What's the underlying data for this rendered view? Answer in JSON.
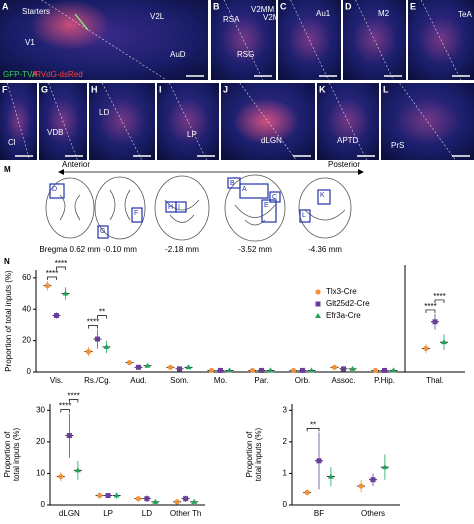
{
  "panels": [
    {
      "letter": "A",
      "labels": [
        {
          "text": "Starters"
        },
        {
          "text": "V2L"
        },
        {
          "text": "V1"
        },
        {
          "text": "AuD"
        },
        {
          "text": "GFP-TVA",
          "color": "#39d353"
        },
        {
          "text": "/RVdG-dsRed",
          "color": "#ff4040"
        }
      ]
    },
    {
      "letter": "B",
      "labels": [
        {
          "text": "V2MM"
        },
        {
          "text": "V2ML"
        },
        {
          "text": "RSA"
        },
        {
          "text": "RSG"
        }
      ]
    },
    {
      "letter": "C",
      "labels": [
        {
          "text": "Au1"
        }
      ]
    },
    {
      "letter": "D",
      "labels": [
        {
          "text": "M2"
        }
      ]
    },
    {
      "letter": "E",
      "labels": [
        {
          "text": "TeA"
        }
      ]
    },
    {
      "letter": "F",
      "labels": [
        {
          "text": "Cl"
        }
      ]
    },
    {
      "letter": "G",
      "labels": [
        {
          "text": "VDB"
        }
      ]
    },
    {
      "letter": "H",
      "labels": [
        {
          "text": "LD"
        }
      ]
    },
    {
      "letter": "I",
      "labels": [
        {
          "text": "LP"
        }
      ]
    },
    {
      "letter": "J",
      "labels": [
        {
          "text": "dLGN"
        }
      ]
    },
    {
      "letter": "K",
      "labels": [
        {
          "text": "APTD"
        }
      ]
    },
    {
      "letter": "L",
      "labels": [
        {
          "text": "PrS"
        }
      ]
    }
  ],
  "sections": {
    "letter": "M",
    "anterior": "Anterior",
    "posterior": "Posterior",
    "bregma": [
      "Bregma 0.62 mm",
      "-0.10 mm",
      "-2.18 mm",
      "-3.52 mm",
      "-4.36 mm"
    ],
    "boxes": [
      "D",
      "G",
      "F",
      "H",
      "I",
      "B",
      "A",
      "C",
      "E",
      "K",
      "L"
    ]
  },
  "chart_letter": "N",
  "chart_data": [
    {
      "type": "dot",
      "y_label": "Proportion of total inputs (%)",
      "categories": [
        "Vis.",
        "Rs./Cg.",
        "Aud.",
        "Som.",
        "Mo.",
        "Par.",
        "Orb.",
        "Assoc.",
        "P.Hip.",
        "Thal."
      ],
      "series": [
        {
          "name": "Tlx3-Cre",
          "color": "#f0923a",
          "marker": "circle",
          "values": [
            55,
            13,
            6,
            3,
            1,
            1,
            1,
            3,
            1,
            15
          ],
          "errors": [
            3,
            3,
            1,
            1,
            0.5,
            0.5,
            0.5,
            1.5,
            0.5,
            3
          ]
        },
        {
          "name": "Glt25d2-Cre",
          "color": "#6a3d9a",
          "marker": "square",
          "values": [
            36,
            21,
            3,
            2,
            1,
            1,
            1,
            2,
            1,
            32
          ],
          "errors": [
            2,
            6,
            0.5,
            0.5,
            0.5,
            0.5,
            0.5,
            1,
            0.5,
            5
          ]
        },
        {
          "name": "Efr3a-Cre",
          "color": "#1fa35a",
          "marker": "triangle",
          "values": [
            50,
            16,
            4,
            3,
            1,
            1,
            1,
            2,
            1,
            19
          ],
          "errors": [
            4,
            4,
            0.5,
            1,
            0.5,
            0.5,
            0.5,
            1,
            0.5,
            5
          ]
        }
      ],
      "ylim": [
        0,
        65
      ],
      "yticks": [
        0,
        20,
        40,
        60
      ],
      "legend": "upper right",
      "annotations": [
        {
          "text": "****",
          "category": "Vis.",
          "series": [
            "Tlx3-Cre",
            "Glt25d2-Cre"
          ]
        },
        {
          "text": "****",
          "category": "Vis.",
          "series": [
            "Glt25d2-Cre",
            "Efr3a-Cre"
          ]
        },
        {
          "text": "****",
          "category": "Rs./Cg.",
          "series": [
            "Tlx3-Cre",
            "Glt25d2-Cre"
          ]
        },
        {
          "text": "**",
          "category": "Rs./Cg.",
          "series": [
            "Glt25d2-Cre",
            "Efr3a-Cre"
          ]
        },
        {
          "text": "****",
          "category": "Thal.",
          "series": [
            "Tlx3-Cre",
            "Glt25d2-Cre"
          ]
        },
        {
          "text": "****",
          "category": "Thal.",
          "series": [
            "Glt25d2-Cre",
            "Efr3a-Cre"
          ]
        }
      ]
    },
    {
      "type": "dot",
      "y_label": "Proportion of total inputs (%)",
      "categories": [
        "dLGN",
        "LP",
        "LD",
        "Other Th"
      ],
      "series": [
        {
          "name": "Tlx3-Cre",
          "color": "#f0923a",
          "marker": "circle",
          "values": [
            9,
            3,
            2,
            1
          ],
          "errors": [
            1.5,
            1,
            1,
            0.5
          ]
        },
        {
          "name": "Glt25d2-Cre",
          "color": "#6a3d9a",
          "marker": "square",
          "values": [
            22,
            3,
            2,
            2
          ],
          "errors": [
            7,
            0.5,
            1,
            1
          ]
        },
        {
          "name": "Efr3a-Cre",
          "color": "#1fa35a",
          "marker": "triangle",
          "values": [
            11,
            3,
            1,
            1
          ],
          "errors": [
            3,
            1,
            0.5,
            0.5
          ]
        }
      ],
      "ylim": [
        0,
        32
      ],
      "yticks": [
        0,
        10,
        20,
        30
      ],
      "annotations": [
        {
          "text": "****",
          "category": "dLGN",
          "series": [
            "Tlx3-Cre",
            "Glt25d2-Cre"
          ]
        },
        {
          "text": "****",
          "category": "dLGN",
          "series": [
            "Glt25d2-Cre",
            "Efr3a-Cre"
          ]
        }
      ]
    },
    {
      "type": "dot",
      "y_label": "Proportion of total inputs (%)",
      "categories": [
        "BF",
        "Others"
      ],
      "series": [
        {
          "name": "Tlx3-Cre",
          "color": "#f0923a",
          "marker": "circle",
          "values": [
            0.4,
            0.6
          ],
          "errors": [
            0.1,
            0.2
          ]
        },
        {
          "name": "Glt25d2-Cre",
          "color": "#6a3d9a",
          "marker": "square",
          "values": [
            1.4,
            0.8
          ],
          "errors": [
            0.9,
            0.2
          ]
        },
        {
          "name": "Efr3a-Cre",
          "color": "#1fa35a",
          "marker": "triangle",
          "values": [
            0.9,
            1.2
          ],
          "errors": [
            0.3,
            0.4
          ]
        }
      ],
      "ylim": [
        0,
        3.2
      ],
      "yticks": [
        0,
        1,
        2,
        3
      ],
      "annotations": [
        {
          "text": "**",
          "category": "BF",
          "series": [
            "Tlx3-Cre",
            "Glt25d2-Cre"
          ]
        }
      ]
    }
  ]
}
